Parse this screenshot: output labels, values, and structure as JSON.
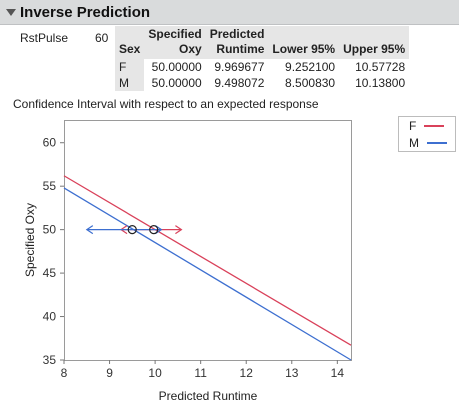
{
  "header": {
    "title": "Inverse Prediction"
  },
  "parameter": {
    "label": "RstPulse",
    "value": "60"
  },
  "table": {
    "headers": [
      [
        "",
        "Sex"
      ],
      [
        "Specified",
        "Oxy"
      ],
      [
        "Predicted",
        "Runtime"
      ],
      [
        "",
        "Lower 95%"
      ],
      [
        "",
        "Upper 95%"
      ]
    ],
    "rows": [
      [
        "F",
        "50.00000",
        "9.969677",
        "9.252100",
        "10.57728"
      ],
      [
        "M",
        "50.00000",
        "9.498072",
        "8.500830",
        "10.13800"
      ]
    ]
  },
  "caption": "Confidence Interval with respect to an expected response",
  "legend": [
    {
      "label": "F",
      "color": "#d9415a"
    },
    {
      "label": "M",
      "color": "#3d6fd0"
    }
  ],
  "chart_data": {
    "type": "line",
    "xlabel": "Predicted Runtime",
    "ylabel": "Specified Oxy",
    "xlim": [
      8,
      14.3
    ],
    "ylim": [
      35,
      62.5
    ],
    "xticks": [
      8,
      9,
      10,
      11,
      12,
      13,
      14
    ],
    "yticks": [
      35,
      40,
      45,
      50,
      55,
      60
    ],
    "series": [
      {
        "name": "F",
        "color": "#d9415a",
        "line": [
          [
            8,
            56.2
          ],
          [
            14.3,
            36.7
          ]
        ],
        "point": [
          9.969677,
          50.0
        ],
        "interval": [
          9.2521,
          10.57728
        ]
      },
      {
        "name": "M",
        "color": "#3d6fd0",
        "line": [
          [
            8,
            54.8
          ],
          [
            14.3,
            35.0
          ]
        ],
        "point": [
          9.498072,
          50.0
        ],
        "interval": [
          8.50083,
          10.138
        ]
      }
    ]
  }
}
